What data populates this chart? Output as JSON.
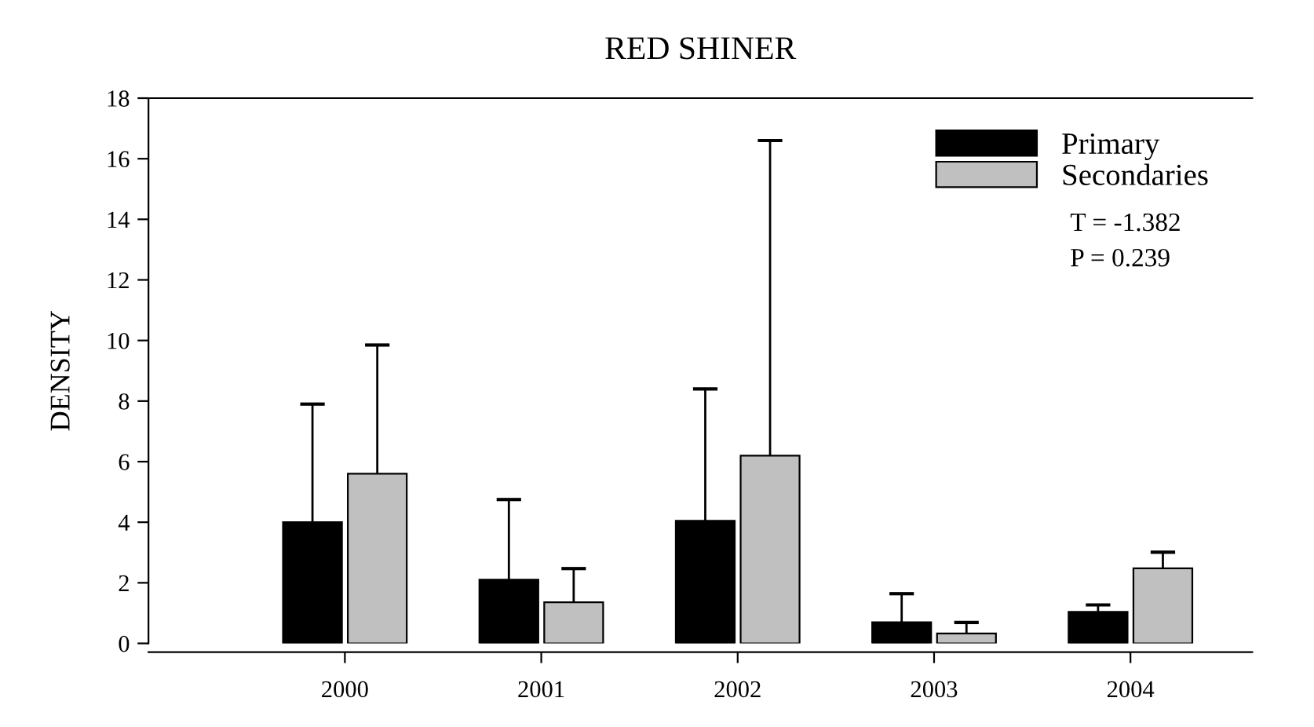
{
  "chart_data": {
    "type": "bar",
    "title": "RED SHINER",
    "ylabel": "DENSITY",
    "categories": [
      "2000",
      "2001",
      "2002",
      "2003",
      "2004"
    ],
    "series": [
      {
        "name": "Primary",
        "color": "#000000",
        "values": [
          4.0,
          2.1,
          4.05,
          0.7,
          1.04
        ],
        "errors": [
          [
            4.0,
            7.9
          ],
          [
            2.1,
            4.75
          ],
          [
            4.05,
            8.4
          ],
          [
            0.7,
            1.64
          ],
          [
            1.04,
            1.27
          ]
        ]
      },
      {
        "name": "Secondaries",
        "color": "#c0c0c0",
        "values": [
          5.6,
          1.36,
          6.2,
          0.33,
          2.48
        ],
        "errors": [
          [
            5.6,
            9.85
          ],
          [
            1.36,
            2.47
          ],
          [
            6.2,
            16.6
          ],
          [
            0.33,
            0.69
          ],
          [
            2.48,
            3.01
          ]
        ]
      }
    ],
    "ylim": [
      0,
      18
    ],
    "yticks": [
      0,
      2,
      4,
      6,
      8,
      10,
      12,
      14,
      16,
      18
    ],
    "legend": "top right",
    "grid": false,
    "annotations": [
      "T = -1.382",
      "P = 0.239"
    ]
  }
}
